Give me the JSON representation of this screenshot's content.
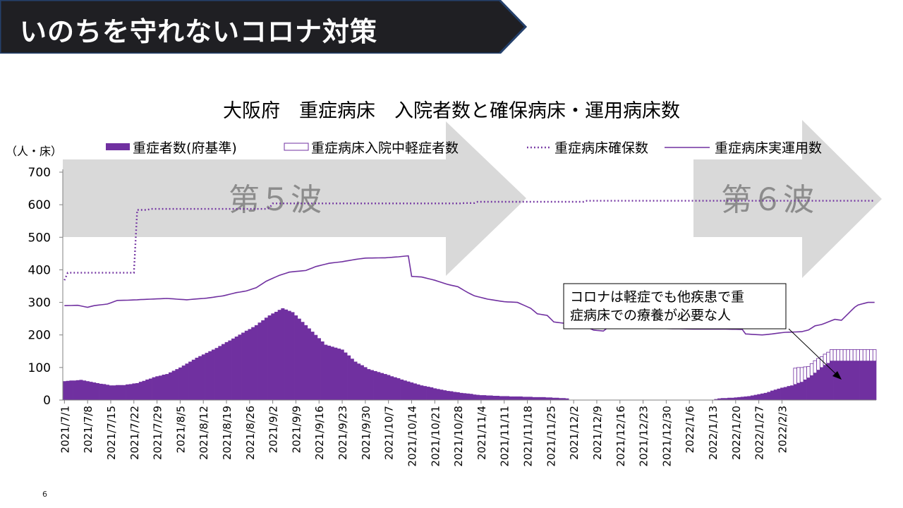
{
  "slide": {
    "title": "いのちを守れないコロナ対策",
    "page_number": "6"
  },
  "colors": {
    "banner_fill": "#1f1f23",
    "banner_border": "#24406b",
    "severe_bar": "#7030a0",
    "mild_bar_fill": "#ffffff",
    "mild_bar_stroke": "#7030a0",
    "secured_line": "#7030a0",
    "operational_line": "#7030a0",
    "wave_arrow": "#d9d9d9",
    "wave_text": "#8c8c8c"
  },
  "chart_data": {
    "type": "bar",
    "title": "大阪府　重症病床　入院者数と確保病床・運用病床数",
    "y_unit_label": "（人・床）",
    "ylim": [
      0,
      700
    ],
    "yticks": [
      0,
      100,
      200,
      300,
      400,
      500,
      600,
      700
    ],
    "start_date": "2021/7/1",
    "xtick_labels": [
      "2021/7/1",
      "2021/7/8",
      "2021/7/15",
      "2021/7/22",
      "2021/7/29",
      "2021/8/5",
      "2021/8/12",
      "2021/8/19",
      "2021/8/26",
      "2021/9/2",
      "2021/9/9",
      "2021/9/16",
      "2021/9/23",
      "2021/9/30",
      "2021/10/7",
      "2021/10/14",
      "2021/10/21",
      "2021/10/28",
      "2021/11/4",
      "2021/11/11",
      "2021/11/18",
      "2021/11/25",
      "2021/12/2",
      "2021/12/9",
      "2021/12/16",
      "2021/12/23",
      "2021/12/30",
      "2022/1/6",
      "2022/1/13",
      "2022/1/20",
      "2022/1/27",
      "2022/2/3"
    ],
    "legend": [
      {
        "label": "重症者数(府基準)",
        "kind": "bar-filled"
      },
      {
        "label": "重症病床入院中軽症者数",
        "kind": "bar-outline"
      },
      {
        "label": "重症病床確保数",
        "kind": "dotted-line"
      },
      {
        "label": "重症病床実運用数",
        "kind": "solid-line"
      }
    ],
    "series": [
      {
        "name": "重症者数(府基準)",
        "kind": "bar",
        "stack": "base",
        "keypoints": [
          [
            0,
            58
          ],
          [
            5,
            62
          ],
          [
            10,
            52
          ],
          [
            14,
            45
          ],
          [
            18,
            46
          ],
          [
            22,
            52
          ],
          [
            27,
            70
          ],
          [
            31,
            80
          ],
          [
            35,
            100
          ],
          [
            40,
            130
          ],
          [
            46,
            160
          ],
          [
            52,
            195
          ],
          [
            58,
            230
          ],
          [
            62,
            260
          ],
          [
            66,
            282
          ],
          [
            69,
            270
          ],
          [
            72,
            240
          ],
          [
            76,
            200
          ],
          [
            79,
            170
          ],
          [
            84,
            155
          ],
          [
            88,
            118
          ],
          [
            92,
            95
          ],
          [
            97,
            80
          ],
          [
            103,
            60
          ],
          [
            108,
            45
          ],
          [
            115,
            30
          ],
          [
            120,
            22
          ],
          [
            126,
            15
          ],
          [
            133,
            12
          ],
          [
            140,
            10
          ],
          [
            147,
            8
          ],
          [
            152,
            5
          ],
          [
            153,
            0
          ],
          [
            196,
            0
          ],
          [
            198,
            5
          ],
          [
            203,
            8
          ],
          [
            207,
            12
          ],
          [
            212,
            22
          ],
          [
            216,
            35
          ],
          [
            220,
            45
          ],
          [
            223,
            55
          ],
          [
            226,
            75
          ],
          [
            229,
            100
          ],
          [
            232,
            120
          ]
        ]
      },
      {
        "name": "重症病床入院中軽症者数",
        "kind": "bar",
        "stack": "top",
        "keypoints": [
          [
            0,
            0
          ],
          [
            220,
            0
          ],
          [
            221,
            50
          ],
          [
            223,
            45
          ],
          [
            225,
            35
          ],
          [
            227,
            38
          ],
          [
            229,
            33
          ],
          [
            232,
            35
          ]
        ]
      },
      {
        "name": "重症病床確保数",
        "kind": "line",
        "style": "dotted",
        "steps": [
          [
            0,
            368
          ],
          [
            1,
            391
          ],
          [
            21,
            391
          ],
          [
            22,
            584
          ],
          [
            26,
            587
          ],
          [
            62,
            590
          ],
          [
            63,
            604
          ],
          [
            121,
            605
          ],
          [
            125,
            609
          ],
          [
            158,
            612
          ],
          [
            232,
            612
          ]
        ]
      },
      {
        "name": "重症病床実運用数",
        "kind": "line",
        "style": "solid",
        "keypoints": [
          [
            0,
            290
          ],
          [
            4,
            291
          ],
          [
            7,
            285
          ],
          [
            9,
            290
          ],
          [
            13,
            295
          ],
          [
            16,
            306
          ],
          [
            20,
            307
          ],
          [
            24,
            309
          ],
          [
            31,
            312
          ],
          [
            37,
            308
          ],
          [
            43,
            313
          ],
          [
            48,
            320
          ],
          [
            52,
            330
          ],
          [
            55,
            335
          ],
          [
            58,
            345
          ],
          [
            61,
            365
          ],
          [
            65,
            383
          ],
          [
            68,
            393
          ],
          [
            73,
            398
          ],
          [
            76,
            410
          ],
          [
            80,
            420
          ],
          [
            84,
            425
          ],
          [
            88,
            432
          ],
          [
            91,
            436
          ],
          [
            97,
            437
          ],
          [
            101,
            440
          ],
          [
            104,
            443
          ],
          [
            105,
            380
          ],
          [
            108,
            378
          ],
          [
            112,
            368
          ],
          [
            116,
            355
          ],
          [
            119,
            348
          ],
          [
            122,
            330
          ],
          [
            124,
            320
          ],
          [
            128,
            310
          ],
          [
            133,
            302
          ],
          [
            137,
            300
          ],
          [
            141,
            282
          ],
          [
            143,
            265
          ],
          [
            146,
            260
          ],
          [
            148,
            240
          ],
          [
            154,
            232
          ],
          [
            157,
            228
          ],
          [
            160,
            215
          ],
          [
            163,
            212
          ],
          [
            164,
            220
          ],
          [
            180,
            220
          ],
          [
            190,
            218
          ],
          [
            198,
            218
          ],
          [
            205,
            217
          ],
          [
            206,
            203
          ],
          [
            211,
            200
          ],
          [
            214,
            203
          ],
          [
            217,
            207
          ],
          [
            218,
            208
          ],
          [
            223,
            210
          ],
          [
            225,
            215
          ],
          [
            227,
            228
          ],
          [
            229,
            232
          ],
          [
            231,
            240
          ],
          [
            233,
            248
          ],
          [
            235,
            245
          ],
          [
            237,
            265
          ],
          [
            239,
            285
          ],
          [
            240,
            292
          ],
          [
            243,
            300
          ],
          [
            245,
            300
          ]
        ]
      }
    ],
    "waves": [
      {
        "label": "第５波"
      },
      {
        "label": "第６波"
      }
    ],
    "annotation": {
      "lines": [
        "コロナは軽症でも他疾患で重",
        "症病床での療養が必要な人"
      ]
    }
  }
}
